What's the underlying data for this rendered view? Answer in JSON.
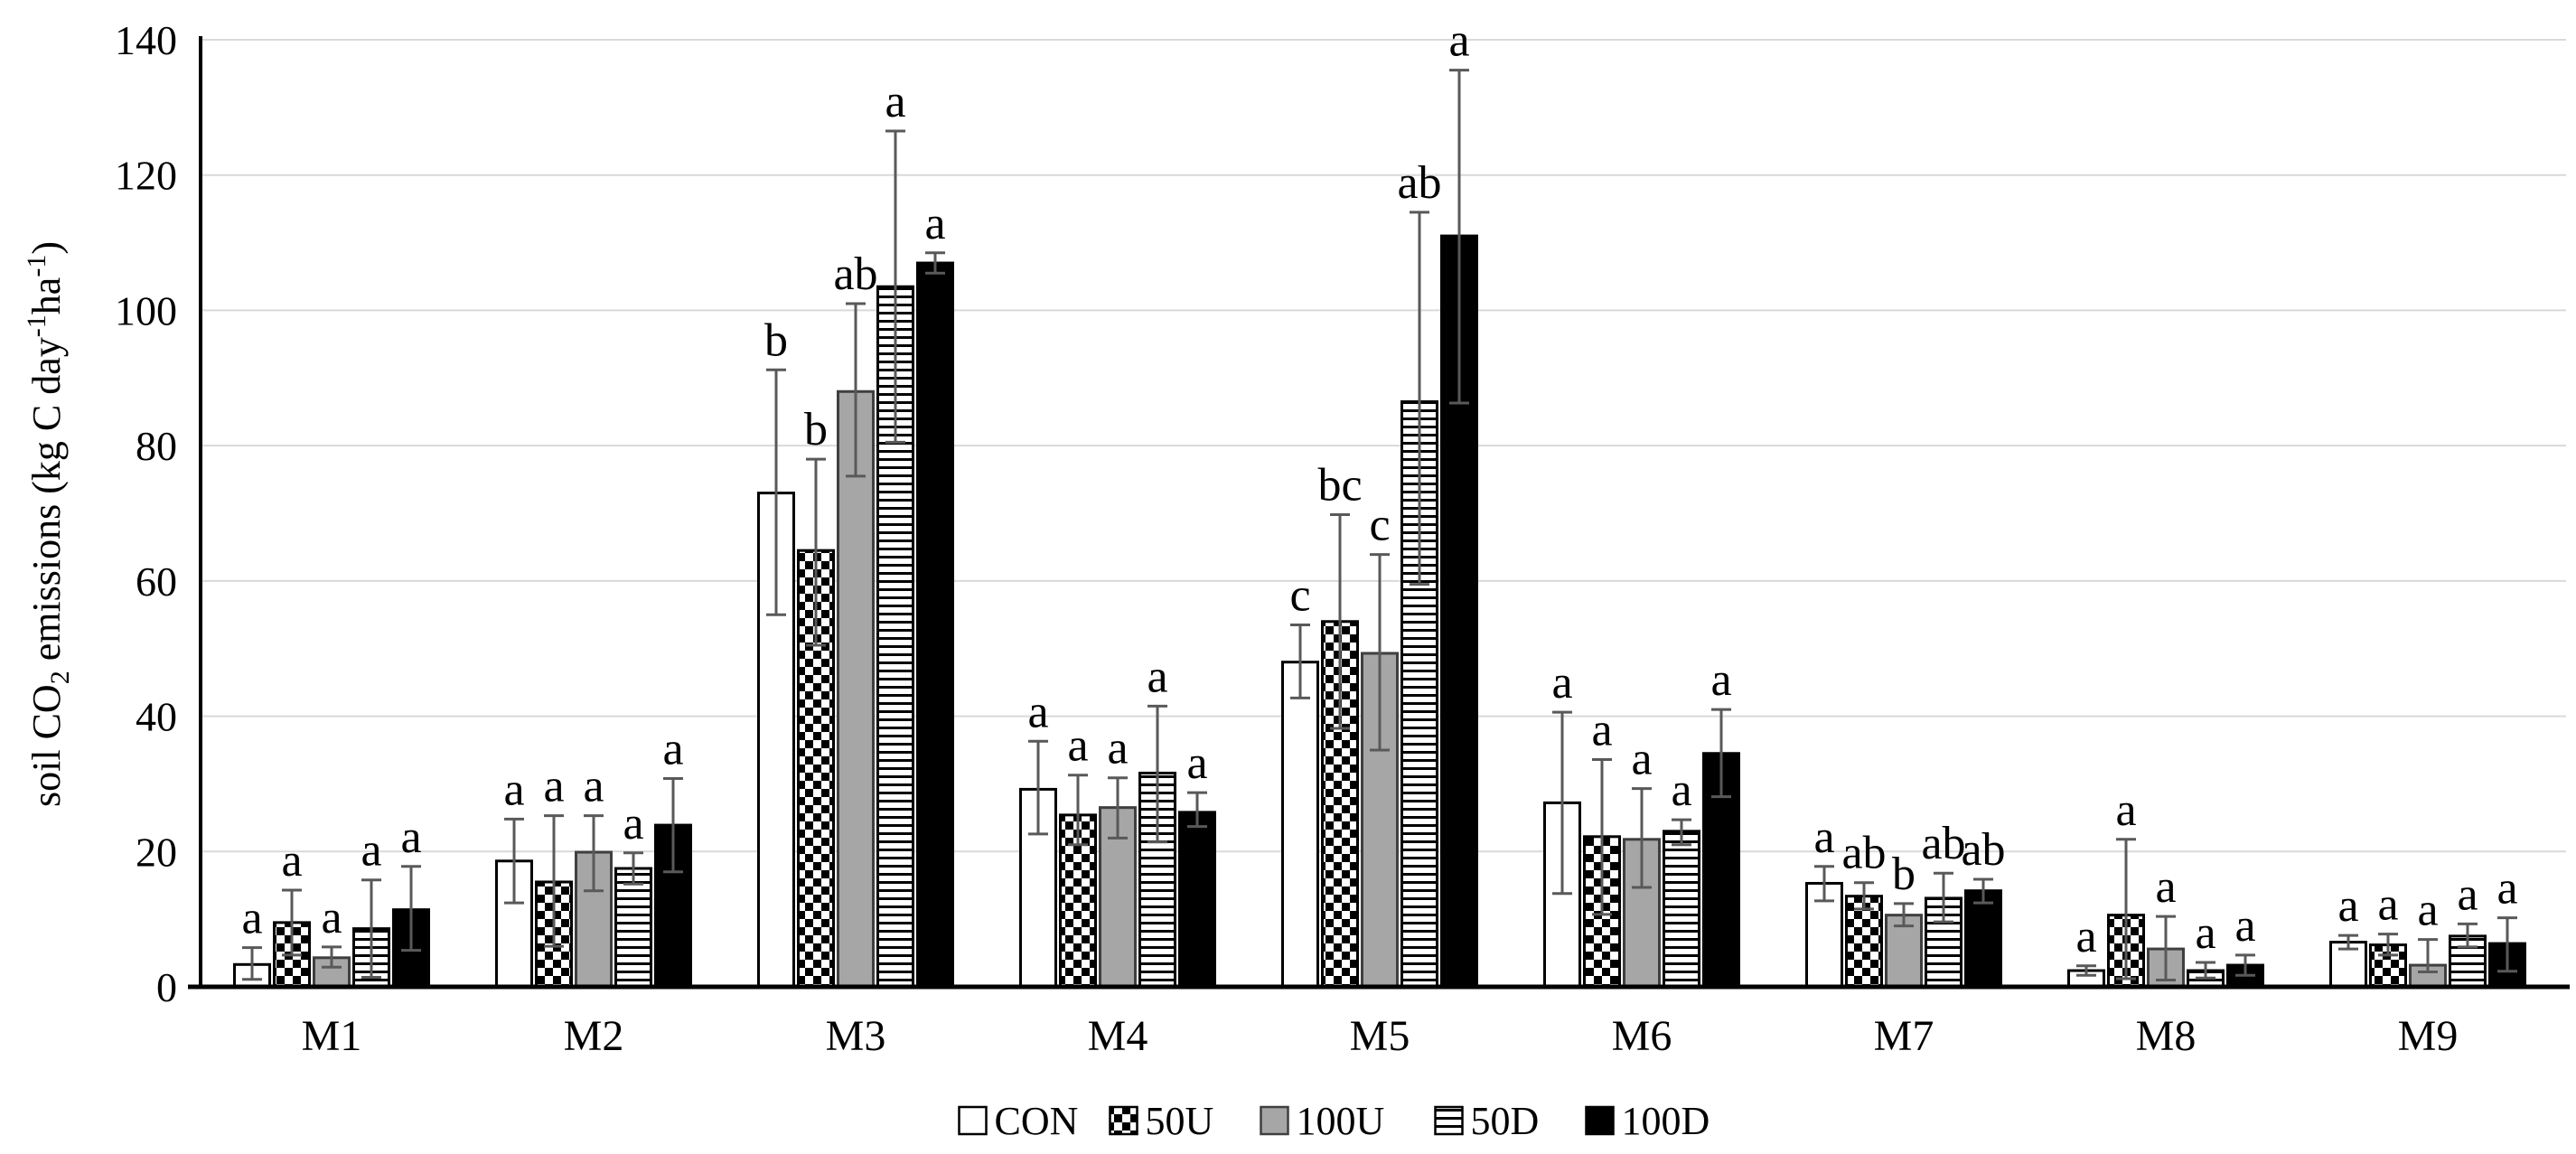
{
  "chart_data": {
    "type": "bar",
    "title": "",
    "ylabel": "soil CO2 emissions (kg C day-1ha-1)",
    "ylabel_parts": [
      {
        "t": "soil CO"
      },
      {
        "t": "2",
        "script": "sub"
      },
      {
        "t": " emissions (kg C day"
      },
      {
        "t": "-1",
        "script": "sup"
      },
      {
        "t": "ha"
      },
      {
        "t": "-1",
        "script": "sup"
      },
      {
        "t": ")"
      }
    ],
    "xlabel": "",
    "categories": [
      "M1",
      "M2",
      "M3",
      "M4",
      "M5",
      "M6",
      "M7",
      "M8",
      "M9"
    ],
    "yticks": [
      0,
      20,
      40,
      60,
      80,
      100,
      120,
      140
    ],
    "ylim": [
      0,
      140
    ],
    "grid": true,
    "legend_position": "bottom-center",
    "series": [
      {
        "name": "CON",
        "pattern": "white",
        "values": [
          3.3,
          18.6,
          73.0,
          29.2,
          48.0,
          27.2,
          15.3,
          2.4,
          6.6
        ],
        "err_up": [
          2.5,
          6.2,
          18.2,
          7.1,
          5.5,
          13.4,
          2.5,
          0.7,
          1.0
        ],
        "err_dn": [
          2.2,
          6.2,
          18.0,
          6.6,
          5.3,
          13.4,
          2.6,
          0.7,
          1.0
        ],
        "letters": [
          "a",
          "a",
          "b",
          "a",
          "c",
          "a",
          "a",
          "a",
          "a"
        ]
      },
      {
        "name": "50U",
        "pattern": "checker",
        "values": [
          9.5,
          15.5,
          64.5,
          25.4,
          54.0,
          22.2,
          13.4,
          10.6,
          6.2
        ],
        "err_up": [
          4.8,
          9.8,
          13.5,
          5.9,
          15.8,
          11.4,
          2.0,
          11.2,
          1.6
        ],
        "err_dn": [
          4.8,
          9.5,
          14.0,
          4.4,
          15.8,
          11.5,
          1.9,
          9.4,
          1.5
        ],
        "letters": [
          "a",
          "a",
          "b",
          "a",
          "bc",
          "a",
          "ab",
          "a",
          "a"
        ]
      },
      {
        "name": "100U",
        "pattern": "gray",
        "values": [
          4.3,
          19.9,
          88.0,
          26.5,
          49.3,
          21.8,
          10.6,
          5.6,
          3.2
        ],
        "err_up": [
          1.6,
          5.4,
          13.0,
          4.4,
          14.6,
          7.5,
          1.7,
          4.8,
          3.8
        ],
        "err_dn": [
          1.4,
          5.7,
          12.5,
          4.5,
          14.3,
          7.1,
          1.6,
          4.6,
          1.0
        ],
        "letters": [
          "a",
          "a",
          "ab",
          "a",
          "c",
          "a",
          "b",
          "a",
          "a"
        ]
      },
      {
        "name": "50D",
        "pattern": "hlines",
        "values": [
          8.6,
          17.5,
          103.5,
          31.6,
          86.5,
          23.0,
          13.1,
          2.4,
          7.5
        ],
        "err_up": [
          7.2,
          2.3,
          23.0,
          9.9,
          28.0,
          1.7,
          3.7,
          1.2,
          1.8
        ],
        "err_dn": [
          7.2,
          2.3,
          23.0,
          10.2,
          27.0,
          2.0,
          3.5,
          1.1,
          1.6
        ],
        "letters": [
          "a",
          "a",
          "a",
          "a",
          "ab",
          "a",
          "ab",
          "a",
          "a"
        ]
      },
      {
        "name": "100D",
        "pattern": "black",
        "values": [
          11.4,
          23.9,
          107.0,
          25.8,
          111.0,
          34.5,
          14.2,
          3.2,
          6.4
        ],
        "err_up": [
          6.4,
          6.9,
          1.5,
          2.9,
          24.5,
          6.5,
          1.7,
          1.5,
          3.8
        ],
        "err_dn": [
          6.0,
          6.9,
          1.5,
          2.1,
          24.7,
          6.4,
          1.8,
          1.5,
          4.1
        ],
        "letters": [
          "a",
          "a",
          "a",
          "a",
          "a",
          "a",
          "ab",
          "a",
          "a"
        ]
      }
    ],
    "legend": [
      "CON",
      "50U",
      "100U",
      "50D",
      "100D"
    ],
    "colors": {
      "bar_gray": "#a6a6a6",
      "bar_black": "#000000",
      "bar_white": "#ffffff",
      "bar_border": "#000000",
      "gray_border": "#3f3f3f",
      "error_bar": "#595959",
      "gridline": "#d9d9d9",
      "axis": "#000000",
      "background": "#ffffff"
    }
  }
}
